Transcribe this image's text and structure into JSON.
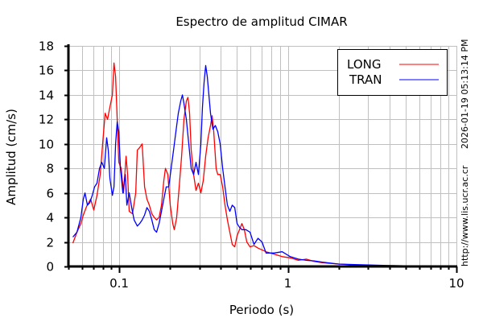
{
  "chart_data": {
    "type": "line",
    "title": "Espectro de amplitud CIMAR",
    "xlabel": "Periodo (s)",
    "ylabel": "Amplitud (cm/s)",
    "xscale": "log",
    "xlim": [
      0.05,
      10
    ],
    "ylim": [
      0,
      18
    ],
    "xticks": [
      {
        "value": 0.1,
        "label": "0.1"
      },
      {
        "value": 1,
        "label": "1"
      },
      {
        "value": 10,
        "label": "10"
      }
    ],
    "yticks": [
      0,
      2,
      4,
      6,
      8,
      10,
      12,
      14,
      16,
      18
    ],
    "grid": true,
    "legend_position": "top-right",
    "side_text_timestamp": "2026-01-19 05:13:14 PM",
    "side_text_url": "http://www.lis.ucr.ac.cr",
    "series": [
      {
        "name": "LONG",
        "color": "#ff0000",
        "points": [
          [
            0.0531,
            1.9
          ],
          [
            0.0562,
            2.8
          ],
          [
            0.0593,
            3.5
          ],
          [
            0.0613,
            4.2
          ],
          [
            0.0641,
            4.9
          ],
          [
            0.0677,
            5.5
          ],
          [
            0.0707,
            4.6
          ],
          [
            0.0739,
            5.8
          ],
          [
            0.0772,
            7.5
          ],
          [
            0.0798,
            10
          ],
          [
            0.0825,
            12.5
          ],
          [
            0.0853,
            12.0
          ],
          [
            0.0881,
            13
          ],
          [
            0.0911,
            14
          ],
          [
            0.0931,
            16.6
          ],
          [
            0.0952,
            15.5
          ],
          [
            0.0973,
            12
          ],
          [
            0.0995,
            8.5
          ],
          [
            0.1028,
            8
          ],
          [
            0.1062,
            6
          ],
          [
            0.1098,
            9
          ],
          [
            0.1122,
            7.5
          ],
          [
            0.1147,
            4.5
          ],
          [
            0.1199,
            4.3
          ],
          [
            0.1253,
            6
          ],
          [
            0.1281,
            9.5
          ],
          [
            0.1323,
            9.7
          ],
          [
            0.1368,
            10
          ],
          [
            0.1414,
            6.5
          ],
          [
            0.1461,
            5.5
          ],
          [
            0.151,
            5
          ],
          [
            0.1561,
            4.3
          ],
          [
            0.1613,
            4.0
          ],
          [
            0.1667,
            3.8
          ],
          [
            0.1723,
            4
          ],
          [
            0.1781,
            5
          ],
          [
            0.184,
            7
          ],
          [
            0.1881,
            8
          ],
          [
            0.1944,
            7.5
          ],
          [
            0.2009,
            5
          ],
          [
            0.2077,
            3.5
          ],
          [
            0.2123,
            3
          ],
          [
            0.2194,
            4
          ],
          [
            0.2268,
            6.5
          ],
          [
            0.2344,
            9
          ],
          [
            0.2422,
            12
          ],
          [
            0.2503,
            13.5
          ],
          [
            0.2559,
            13.8
          ],
          [
            0.2616,
            12.5
          ],
          [
            0.2674,
            9.5
          ],
          [
            0.2764,
            7.5
          ],
          [
            0.2856,
            6.2
          ],
          [
            0.2952,
            6.8
          ],
          [
            0.3051,
            6
          ],
          [
            0.3153,
            7
          ],
          [
            0.3258,
            9
          ],
          [
            0.3368,
            10.5
          ],
          [
            0.3481,
            11.5
          ],
          [
            0.3558,
            12.3
          ],
          [
            0.3638,
            11
          ],
          [
            0.376,
            8
          ],
          [
            0.3843,
            7.5
          ],
          [
            0.3972,
            7.5
          ],
          [
            0.4106,
            6.5
          ],
          [
            0.4243,
            5
          ],
          [
            0.4385,
            3.8
          ],
          [
            0.4531,
            2.8
          ],
          [
            0.4684,
            1.8
          ],
          [
            0.4842,
            1.6
          ],
          [
            0.5004,
            2.5
          ],
          [
            0.5171,
            3.0
          ],
          [
            0.5345,
            3.5
          ],
          [
            0.5524,
            3
          ],
          [
            0.571,
            2
          ],
          [
            0.5967,
            1.6
          ],
          [
            0.6302,
            1.7
          ],
          [
            0.6659,
            1.5
          ],
          [
            0.7431,
            1.2
          ],
          [
            0.83,
            1.0
          ],
          [
            0.926,
            0.8
          ],
          [
            1.033,
            0.7
          ],
          [
            1.154,
            0.5
          ],
          [
            1.288,
            0.6
          ],
          [
            1.437,
            0.4
          ],
          [
            1.604,
            0.3
          ],
          [
            1.999,
            0.2
          ],
          [
            2.49,
            0.12
          ],
          [
            3.865,
            0.07
          ],
          [
            6.0,
            0.04
          ],
          [
            10.0,
            0.02
          ]
        ]
      },
      {
        "name": "TRAN",
        "color": "#0000ff",
        "points": [
          [
            0.0531,
            2.4
          ],
          [
            0.0562,
            2.8
          ],
          [
            0.0593,
            4
          ],
          [
            0.0613,
            5.5
          ],
          [
            0.0627,
            6
          ],
          [
            0.0648,
            5
          ],
          [
            0.0669,
            5.2
          ],
          [
            0.0692,
            5.8
          ],
          [
            0.0715,
            6.5
          ],
          [
            0.0739,
            6.8
          ],
          [
            0.0764,
            8
          ],
          [
            0.0789,
            8.5
          ],
          [
            0.0816,
            8
          ],
          [
            0.0843,
            10.5
          ],
          [
            0.0862,
            9.5
          ],
          [
            0.0881,
            7.2
          ],
          [
            0.0911,
            5.8
          ],
          [
            0.0931,
            6.5
          ],
          [
            0.0952,
            10
          ],
          [
            0.0973,
            11.8
          ],
          [
            0.0995,
            11
          ],
          [
            0.1017,
            8
          ],
          [
            0.1051,
            6
          ],
          [
            0.1086,
            7.5
          ],
          [
            0.111,
            5
          ],
          [
            0.1147,
            6
          ],
          [
            0.1186,
            4.8
          ],
          [
            0.1226,
            3.8
          ],
          [
            0.1281,
            3.3
          ],
          [
            0.1323,
            3.5
          ],
          [
            0.1368,
            3.8
          ],
          [
            0.1414,
            4.2
          ],
          [
            0.1461,
            4.8
          ],
          [
            0.151,
            4.5
          ],
          [
            0.1561,
            3.8
          ],
          [
            0.1613,
            3.0
          ],
          [
            0.1667,
            2.8
          ],
          [
            0.1723,
            3.5
          ],
          [
            0.1781,
            4.5
          ],
          [
            0.184,
            5.5
          ],
          [
            0.1902,
            6.5
          ],
          [
            0.1966,
            6.5
          ],
          [
            0.2032,
            8
          ],
          [
            0.21,
            9.5
          ],
          [
            0.217,
            11
          ],
          [
            0.2243,
            12.5
          ],
          [
            0.2318,
            13.5
          ],
          [
            0.237,
            14.0
          ],
          [
            0.2422,
            13.3
          ],
          [
            0.2503,
            12
          ],
          [
            0.2587,
            10
          ],
          [
            0.2674,
            8
          ],
          [
            0.2764,
            7.5
          ],
          [
            0.2856,
            8.5
          ],
          [
            0.2952,
            7.5
          ],
          [
            0.3051,
            10
          ],
          [
            0.3119,
            13
          ],
          [
            0.3188,
            15
          ],
          [
            0.3258,
            16.4
          ],
          [
            0.3332,
            15.5
          ],
          [
            0.3405,
            14
          ],
          [
            0.3481,
            12.5
          ],
          [
            0.3598,
            11.2
          ],
          [
            0.3718,
            11.5
          ],
          [
            0.3843,
            11
          ],
          [
            0.3972,
            10
          ],
          [
            0.4106,
            8
          ],
          [
            0.4243,
            6.5
          ],
          [
            0.4385,
            5
          ],
          [
            0.4531,
            4.5
          ],
          [
            0.4684,
            5
          ],
          [
            0.4842,
            4.8
          ],
          [
            0.5004,
            3.5
          ],
          [
            0.5171,
            3.2
          ],
          [
            0.5345,
            3
          ],
          [
            0.5646,
            3
          ],
          [
            0.5967,
            2.8
          ],
          [
            0.6302,
            1.8
          ],
          [
            0.6659,
            2.3
          ],
          [
            0.7036,
            2
          ],
          [
            0.7431,
            1.1
          ],
          [
            0.83,
            1.1
          ],
          [
            0.926,
            1.2
          ],
          [
            1.033,
            0.8
          ],
          [
            1.154,
            0.6
          ],
          [
            1.288,
            0.5
          ],
          [
            1.437,
            0.45
          ],
          [
            1.604,
            0.35
          ],
          [
            1.999,
            0.2
          ],
          [
            2.49,
            0.15
          ],
          [
            3.865,
            0.08
          ],
          [
            6.0,
            0.03
          ],
          [
            10.0,
            0.02
          ]
        ]
      }
    ]
  }
}
